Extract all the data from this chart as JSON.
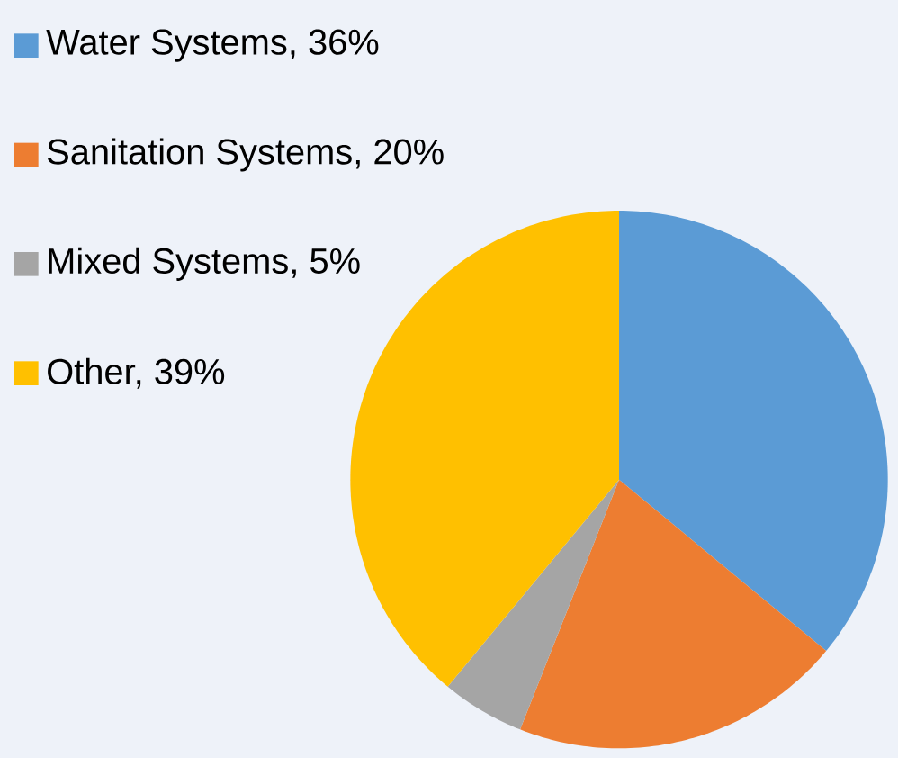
{
  "chart_data": {
    "type": "pie",
    "categories": [
      "Water Systems, 36%",
      "Sanitation Systems, 20%",
      "Mixed Systems, 5%",
      "Other, 39%"
    ],
    "values": [
      36,
      20,
      5,
      39
    ],
    "colors": [
      "#5b9bd5",
      "#ed7d31",
      "#a5a5a5",
      "#ffc000"
    ],
    "legend": "top left"
  }
}
